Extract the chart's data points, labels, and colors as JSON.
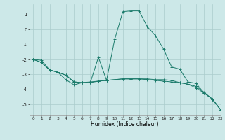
{
  "xlabel": "Humidex (Indice chaleur)",
  "bg_color": "#cce8e8",
  "grid_color": "#aacccc",
  "line_color": "#1a7a6a",
  "xlim": [
    -0.5,
    23
  ],
  "ylim": [
    -5.7,
    1.7
  ],
  "yticks": [
    1,
    0,
    -1,
    -2,
    -3,
    -4,
    -5
  ],
  "xticks": [
    0,
    1,
    2,
    3,
    4,
    5,
    6,
    7,
    8,
    9,
    10,
    11,
    12,
    13,
    14,
    15,
    16,
    17,
    18,
    19,
    20,
    21,
    22,
    23
  ],
  "line1_x": [
    0,
    1,
    2,
    3,
    4,
    5,
    6,
    7,
    8,
    9,
    10,
    11,
    12,
    13,
    14,
    15,
    16,
    17,
    18,
    19,
    20,
    21,
    22,
    23
  ],
  "line1_y": [
    -2.0,
    -2.2,
    -2.7,
    -2.85,
    -3.35,
    -3.7,
    -3.55,
    -3.55,
    -3.45,
    -3.4,
    -3.35,
    -3.3,
    -3.3,
    -3.3,
    -3.35,
    -3.4,
    -3.45,
    -3.5,
    -3.55,
    -3.65,
    -3.8,
    -4.2,
    -4.65,
    -5.35
  ],
  "line2_x": [
    0,
    1,
    2,
    3,
    4,
    5,
    6,
    7,
    8,
    9,
    10,
    11,
    12,
    13,
    14,
    15,
    16,
    17,
    18,
    19,
    20,
    21,
    22,
    23
  ],
  "line2_y": [
    -2.0,
    -2.2,
    -2.7,
    -2.85,
    -3.05,
    -3.5,
    -3.55,
    -3.55,
    -1.85,
    -3.4,
    -0.65,
    1.2,
    1.25,
    1.25,
    0.2,
    -0.4,
    -1.3,
    -2.5,
    -2.65,
    -3.5,
    -3.6,
    -4.25,
    -4.65,
    -5.35
  ],
  "line3_x": [
    0,
    1,
    2,
    3,
    4,
    5,
    6,
    7,
    8,
    9,
    10,
    11,
    12,
    13,
    14,
    15,
    16,
    17,
    18,
    19,
    20,
    21,
    22,
    23
  ],
  "line3_y": [
    -2.0,
    -2.05,
    -2.7,
    -2.85,
    -3.05,
    -3.5,
    -3.55,
    -3.5,
    -3.45,
    -3.4,
    -3.35,
    -3.3,
    -3.3,
    -3.3,
    -3.3,
    -3.35,
    -3.35,
    -3.4,
    -3.55,
    -3.65,
    -3.9,
    -4.25,
    -4.65,
    -5.35
  ]
}
